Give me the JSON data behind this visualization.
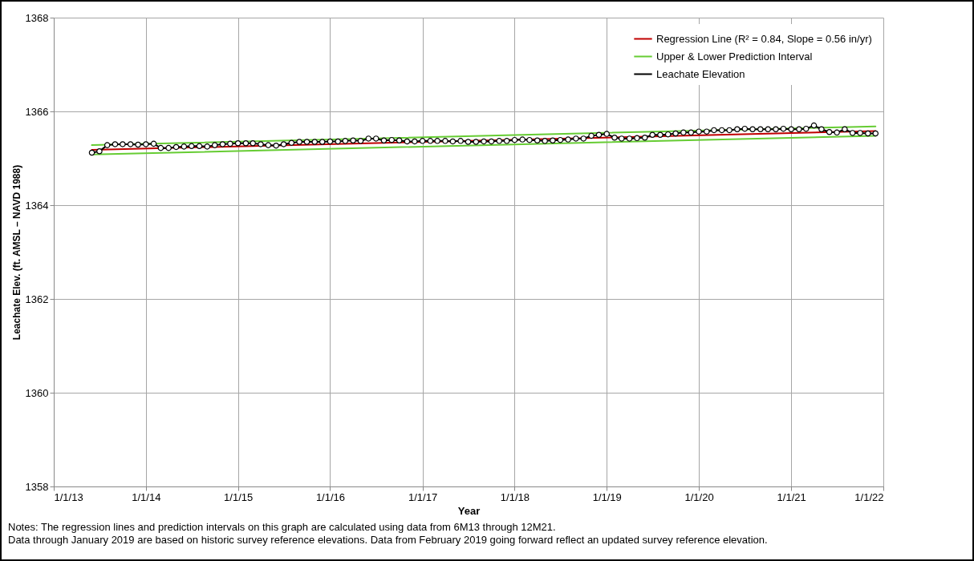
{
  "chart_data": {
    "type": "line",
    "xlabel": "Year",
    "ylabel": "Leachate Elev. (ft. AMSL – NAVD 1988)",
    "xlim": [
      "2013-01-01",
      "2022-01-01"
    ],
    "xticks": [
      {
        "value": "2013-01-01",
        "label": "1/1/13"
      },
      {
        "value": "2014-01-01",
        "label": "1/1/14"
      },
      {
        "value": "2015-01-01",
        "label": "1/1/15"
      },
      {
        "value": "2016-01-01",
        "label": "1/1/16"
      },
      {
        "value": "2017-01-01",
        "label": "1/1/17"
      },
      {
        "value": "2018-01-01",
        "label": "1/1/18"
      },
      {
        "value": "2019-01-01",
        "label": "1/1/19"
      },
      {
        "value": "2020-01-01",
        "label": "1/1/20"
      },
      {
        "value": "2021-01-01",
        "label": "1/1/21"
      },
      {
        "value": "2022-01-01",
        "label": "1/1/22"
      }
    ],
    "ylim": [
      1358,
      1368
    ],
    "yticks": [
      1358,
      1360,
      1362,
      1364,
      1366,
      1368
    ],
    "grid": true,
    "legend": "top right",
    "series": [
      {
        "name": "Regression Line (R² = 0.84, Slope = 0.56 in/yr)",
        "color": "#c00000",
        "marker": "none",
        "x": [
          "2013-06-01",
          "2021-12-01"
        ],
        "values": [
          1365.18,
          1365.58
        ]
      },
      {
        "name": "Upper & Lower Prediction Interval",
        "color": "#66cc33",
        "marker": "none",
        "x": [
          "2013-06-01",
          "2021-12-01"
        ],
        "values": [
          1365.28,
          1365.68
        ]
      },
      {
        "color": "#66cc33",
        "marker": "none",
        "x": [
          "2013-06-01",
          "2021-12-01"
        ],
        "values": [
          1365.08,
          1365.48
        ]
      },
      {
        "name": "Leachate Elevation",
        "color": "#000000",
        "marker": "circle",
        "x": [
          "2013-06-01",
          "2013-07-01",
          "2013-08-01",
          "2013-09-01",
          "2013-10-01",
          "2013-11-01",
          "2013-12-01",
          "2014-01-01",
          "2014-02-01",
          "2014-03-01",
          "2014-04-01",
          "2014-05-01",
          "2014-06-01",
          "2014-07-01",
          "2014-08-01",
          "2014-09-01",
          "2014-10-01",
          "2014-11-01",
          "2014-12-01",
          "2015-01-01",
          "2015-02-01",
          "2015-03-01",
          "2015-04-01",
          "2015-05-01",
          "2015-06-01",
          "2015-07-01",
          "2015-08-01",
          "2015-09-01",
          "2015-10-01",
          "2015-11-01",
          "2015-12-01",
          "2016-01-01",
          "2016-02-01",
          "2016-03-01",
          "2016-04-01",
          "2016-05-01",
          "2016-06-01",
          "2016-07-01",
          "2016-08-01",
          "2016-09-01",
          "2016-10-01",
          "2016-11-01",
          "2016-12-01",
          "2017-01-01",
          "2017-02-01",
          "2017-03-01",
          "2017-04-01",
          "2017-05-01",
          "2017-06-01",
          "2017-07-01",
          "2017-08-01",
          "2017-09-01",
          "2017-10-01",
          "2017-11-01",
          "2017-12-01",
          "2018-01-01",
          "2018-02-01",
          "2018-03-01",
          "2018-04-01",
          "2018-05-01",
          "2018-06-01",
          "2018-07-01",
          "2018-08-01",
          "2018-09-01",
          "2018-10-01",
          "2018-11-01",
          "2018-12-01",
          "2019-01-01",
          "2019-02-01",
          "2019-03-01",
          "2019-04-01",
          "2019-05-01",
          "2019-06-01",
          "2019-07-01",
          "2019-08-01",
          "2019-09-01",
          "2019-10-01",
          "2019-11-01",
          "2019-12-01",
          "2020-01-01",
          "2020-02-01",
          "2020-03-01",
          "2020-04-01",
          "2020-05-01",
          "2020-06-01",
          "2020-07-01",
          "2020-08-01",
          "2020-09-01",
          "2020-10-01",
          "2020-11-01",
          "2020-12-01",
          "2021-01-01",
          "2021-02-01",
          "2021-03-01",
          "2021-04-01",
          "2021-05-01",
          "2021-06-01",
          "2021-07-01",
          "2021-08-01",
          "2021-09-01",
          "2021-10-01",
          "2021-11-01",
          "2021-12-01"
        ],
        "values": [
          1365.12,
          1365.15,
          1365.28,
          1365.3,
          1365.3,
          1365.3,
          1365.29,
          1365.3,
          1365.31,
          1365.22,
          1365.22,
          1365.24,
          1365.25,
          1365.26,
          1365.26,
          1365.25,
          1365.28,
          1365.3,
          1365.31,
          1365.32,
          1365.32,
          1365.32,
          1365.3,
          1365.28,
          1365.27,
          1365.3,
          1365.33,
          1365.35,
          1365.35,
          1365.35,
          1365.35,
          1365.36,
          1365.36,
          1365.37,
          1365.38,
          1365.37,
          1365.42,
          1365.42,
          1365.38,
          1365.39,
          1365.38,
          1365.36,
          1365.36,
          1365.37,
          1365.37,
          1365.37,
          1365.37,
          1365.36,
          1365.37,
          1365.35,
          1365.35,
          1365.36,
          1365.36,
          1365.37,
          1365.37,
          1365.39,
          1365.4,
          1365.39,
          1365.38,
          1365.37,
          1365.38,
          1365.39,
          1365.4,
          1365.42,
          1365.42,
          1365.48,
          1365.5,
          1365.52,
          1365.44,
          1365.42,
          1365.42,
          1365.43,
          1365.44,
          1365.5,
          1365.5,
          1365.51,
          1365.53,
          1365.55,
          1365.55,
          1365.57,
          1365.57,
          1365.6,
          1365.6,
          1365.6,
          1365.62,
          1365.63,
          1365.62,
          1365.62,
          1365.62,
          1365.62,
          1365.63,
          1365.62,
          1365.62,
          1365.63,
          1365.7,
          1365.62,
          1365.56,
          1365.55,
          1365.62,
          1365.54,
          1365.54,
          1365.53,
          1365.53
        ]
      }
    ],
    "annotations": [
      "Notes: The regression lines and prediction intervals on this graph are calculated using data from 6M13 through 12M21.",
      "Data through January 2019 are based on historic survey reference elevations. Data from February 2019 going forward reflect an updated survey reference elevation."
    ]
  }
}
